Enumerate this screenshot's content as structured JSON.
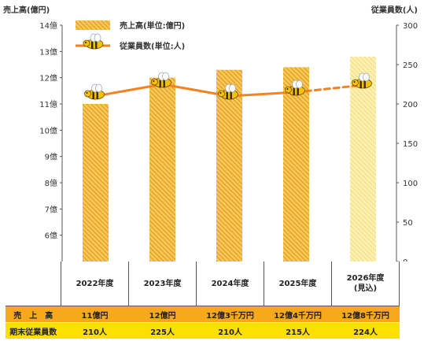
{
  "chart_data": {
    "type": "bar",
    "categories": [
      "2022年度",
      "2023年度",
      "2024年度",
      "2025年度",
      "2026年度"
    ],
    "category_notes": [
      "",
      "",
      "",
      "",
      "(見込)"
    ],
    "series": [
      {
        "name": "売上高(単位:億円)",
        "axis": "left",
        "values": [
          11.0,
          12.0,
          12.3,
          12.4,
          12.8
        ],
        "color": "#f0b429",
        "forecast_from_index": 4,
        "forecast_color": "#f7e48a"
      },
      {
        "name": "従業員数(単位:人)",
        "axis": "right",
        "type": "line",
        "values": [
          210,
          225,
          210,
          215,
          224
        ],
        "color": "#f58220",
        "dashed_from_index": 3
      }
    ],
    "y_left": {
      "label": "売上高(億円)",
      "ticks": [
        "6億",
        "7億",
        "8億",
        "9億",
        "10億",
        "11億",
        "12億",
        "13億",
        "14億"
      ],
      "ylim": [
        5,
        14
      ]
    },
    "y_right": {
      "label": "従業員数(人)",
      "ticks": [
        "0",
        "50",
        "100",
        "150",
        "200",
        "250",
        "300"
      ],
      "ylim": [
        0,
        300
      ]
    },
    "legend_position": "top-left",
    "grid": false,
    "markers": "bee-icon"
  },
  "table": {
    "row_sales_label": "売　上　高",
    "row_staff_label": "期末従業員数",
    "sales": [
      "11億円",
      "12億円",
      "12億3千万円",
      "12億4千万円",
      "12億8千万円"
    ],
    "staff": [
      "210人",
      "225人",
      "210人",
      "215人",
      "224人"
    ]
  }
}
